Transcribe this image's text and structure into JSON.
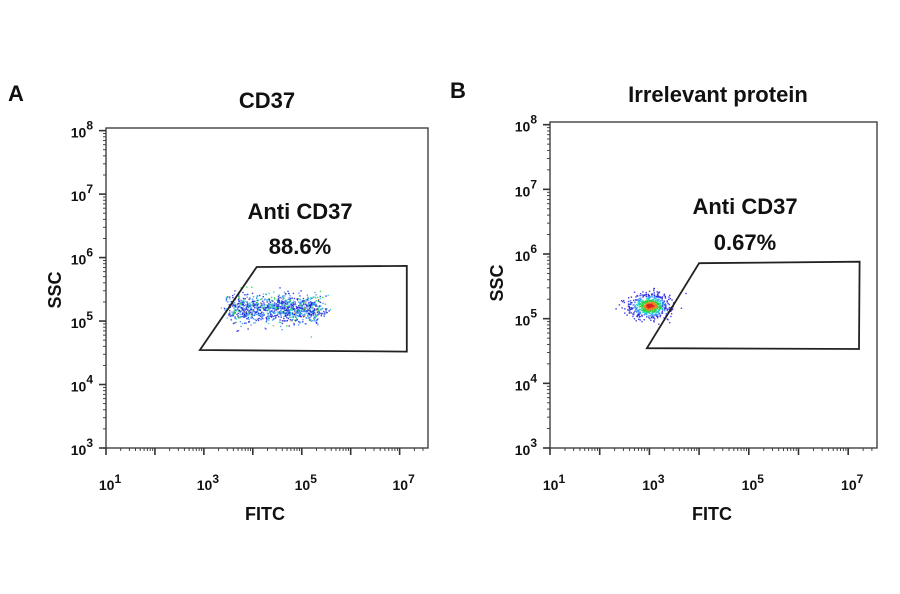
{
  "chart_data": [
    {
      "type": "scatter",
      "panel_label": "A",
      "title": "CD37",
      "xlabel": "FITC",
      "ylabel": "SSC",
      "xscale": "log",
      "yscale": "log",
      "xlim": [
        10,
        38000000
      ],
      "ylim": [
        1000,
        110000000
      ],
      "x_ticks": [
        {
          "base": "10",
          "exp": "1",
          "value": 10
        },
        {
          "base": "10",
          "exp": "3",
          "value": 1000
        },
        {
          "base": "10",
          "exp": "5",
          "value": 100000
        },
        {
          "base": "10",
          "exp": "7",
          "value": 10000000
        }
      ],
      "y_ticks": [
        {
          "base": "10",
          "exp": "3",
          "value": 1000
        },
        {
          "base": "10",
          "exp": "4",
          "value": 10000
        },
        {
          "base": "10",
          "exp": "5",
          "value": 100000
        },
        {
          "base": "10",
          "exp": "6",
          "value": 1000000
        },
        {
          "base": "10",
          "exp": "7",
          "value": 10000000
        },
        {
          "base": "10",
          "exp": "8",
          "value": 100000000
        }
      ],
      "gate": {
        "name": "Anti CD37",
        "percent": "88.6%",
        "vertices": [
          [
            830,
            35000
          ],
          [
            12000,
            710000
          ],
          [
            14000000,
            740000
          ],
          [
            14000000,
            33000
          ]
        ]
      },
      "population": {
        "x_center": 30000,
        "x_spread_decades": 0.55,
        "y_center": 160000,
        "y_spread_decades": 0.11,
        "density": "spread"
      },
      "density_colors": [
        "#2020e0",
        "#3a8cff",
        "#20d0d0",
        "#30d040",
        "#f08020",
        "#e02020"
      ],
      "grid": false
    },
    {
      "type": "scatter",
      "panel_label": "B",
      "title": "Irrelevant protein",
      "xlabel": "FITC",
      "ylabel": "SSC",
      "xscale": "log",
      "yscale": "log",
      "xlim": [
        10,
        38000000
      ],
      "ylim": [
        1000,
        110000000
      ],
      "x_ticks": [
        {
          "base": "10",
          "exp": "1",
          "value": 10
        },
        {
          "base": "10",
          "exp": "3",
          "value": 1000
        },
        {
          "base": "10",
          "exp": "5",
          "value": 100000
        },
        {
          "base": "10",
          "exp": "7",
          "value": 10000000
        }
      ],
      "y_ticks": [
        {
          "base": "10",
          "exp": "3",
          "value": 1000
        },
        {
          "base": "10",
          "exp": "4",
          "value": 10000
        },
        {
          "base": "10",
          "exp": "5",
          "value": 100000
        },
        {
          "base": "10",
          "exp": "6",
          "value": 1000000
        },
        {
          "base": "10",
          "exp": "7",
          "value": 10000000
        },
        {
          "base": "10",
          "exp": "8",
          "value": 100000000
        }
      ],
      "gate": {
        "name": "Anti CD37",
        "percent": "0.67%",
        "vertices": [
          [
            890,
            35000
          ],
          [
            10000,
            720000
          ],
          [
            17000000,
            760000
          ],
          [
            16500000,
            34000
          ]
        ]
      },
      "population": {
        "x_center": 1000,
        "x_spread_decades": 0.2,
        "y_center": 160000,
        "y_spread_decades": 0.09,
        "density": "tight"
      },
      "density_colors": [
        "#2020e0",
        "#3a8cff",
        "#20d0d0",
        "#30d040",
        "#f08020",
        "#e02020"
      ],
      "grid": false
    }
  ]
}
